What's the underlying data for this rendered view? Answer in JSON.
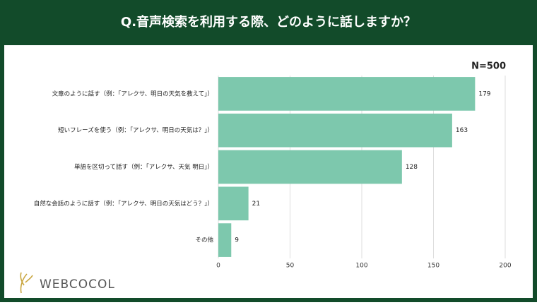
{
  "chart_data": {
    "type": "bar",
    "orientation": "horizontal",
    "title": "Q.音声検索を利用する際、どのように話しますか？",
    "annotation": "N=500",
    "categories": [
      "文章のように話す（例：「アレクサ、明日の天気を教えて」）",
      "短いフレーズを使う（例：「アレクサ、明日の天気は？」）",
      "単語を区切って話す（例：「アレクサ、天気 明日」）",
      "自然な会話のように話す（例：「アレクサ、明日の天気はどう？」）",
      "その他"
    ],
    "values": [
      179,
      163,
      128,
      21,
      9
    ],
    "color": "#7dc8ad",
    "xlim": [
      0,
      200
    ],
    "xticks": [
      0,
      50,
      100,
      150,
      200
    ],
    "grid": true
  },
  "logo": "WEBCOCOL"
}
